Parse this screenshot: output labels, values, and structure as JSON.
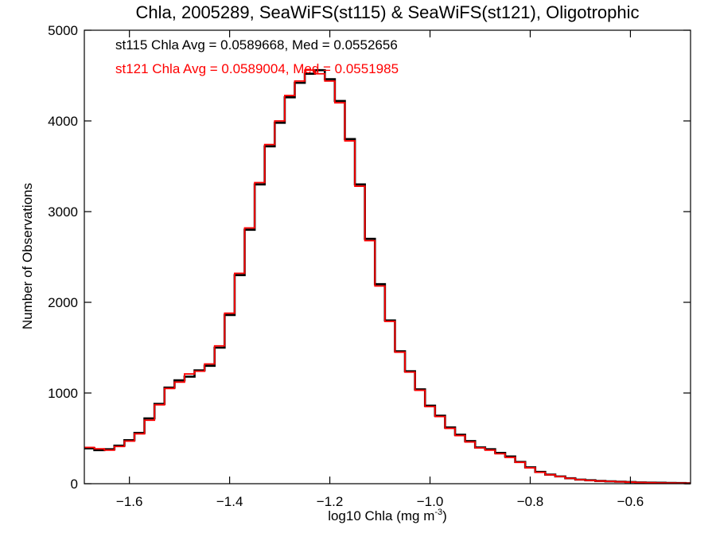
{
  "chart_data": {
    "type": "line",
    "title": "Chla, 2005289, SeaWiFS(st115) & SeaWiFS(st121), Oligotrophic",
    "xlabel": "log10 Chla (mg m",
    "xlabel_superscript": "-3",
    "xlabel_suffix": ")",
    "ylabel": "Number of Observations",
    "xlim": [
      -1.69,
      -0.48
    ],
    "ylim": [
      0,
      5000
    ],
    "x_ticks": [
      {
        "value": -1.6,
        "label": "−1.6"
      },
      {
        "value": -1.4,
        "label": "−1.4"
      },
      {
        "value": -1.2,
        "label": "−1.2"
      },
      {
        "value": -1.0,
        "label": "−1.0"
      },
      {
        "value": -0.8,
        "label": "−0.8"
      },
      {
        "value": -0.6,
        "label": "−0.6"
      }
    ],
    "y_ticks": [
      {
        "value": 0,
        "label": "0"
      },
      {
        "value": 1000,
        "label": "1000"
      },
      {
        "value": 2000,
        "label": "2000"
      },
      {
        "value": 3000,
        "label": "3000"
      },
      {
        "value": 4000,
        "label": "4000"
      },
      {
        "value": 5000,
        "label": "5000"
      }
    ],
    "grid": false,
    "annotations": [
      {
        "text": "st115 Chla Avg = 0.0589668, Med = 0.0552656",
        "color": "#000000"
      },
      {
        "text": "st121 Chla Avg = 0.0589004, Med = 0.0551985",
        "color": "#ff0000"
      }
    ],
    "x": [
      -1.69,
      -1.67,
      -1.65,
      -1.63,
      -1.61,
      -1.59,
      -1.57,
      -1.55,
      -1.53,
      -1.51,
      -1.49,
      -1.47,
      -1.45,
      -1.43,
      -1.41,
      -1.39,
      -1.37,
      -1.35,
      -1.33,
      -1.31,
      -1.29,
      -1.27,
      -1.25,
      -1.23,
      -1.21,
      -1.19,
      -1.17,
      -1.15,
      -1.13,
      -1.11,
      -1.09,
      -1.07,
      -1.05,
      -1.03,
      -1.01,
      -0.99,
      -0.97,
      -0.95,
      -0.93,
      -0.91,
      -0.89,
      -0.87,
      -0.85,
      -0.83,
      -0.81,
      -0.79,
      -0.77,
      -0.75,
      -0.73,
      -0.71,
      -0.69,
      -0.67,
      -0.65,
      -0.63,
      -0.61,
      -0.59,
      -0.57,
      -0.55,
      -0.53,
      -0.51,
      -0.49
    ],
    "series": [
      {
        "color": "#000000",
        "values": [
          390,
          370,
          380,
          420,
          480,
          560,
          720,
          880,
          1060,
          1140,
          1180,
          1250,
          1300,
          1500,
          1860,
          2300,
          2800,
          3300,
          3720,
          3980,
          4260,
          4420,
          4520,
          4560,
          4460,
          4220,
          3800,
          3300,
          2700,
          2200,
          1800,
          1460,
          1240,
          1040,
          860,
          750,
          620,
          540,
          470,
          400,
          380,
          340,
          300,
          240,
          180,
          130,
          100,
          80,
          60,
          45,
          38,
          30,
          26,
          22,
          18,
          14,
          12,
          10,
          8,
          7,
          5
        ]
      },
      {
        "color": "#ff0000",
        "values": [
          400,
          385,
          370,
          410,
          470,
          550,
          700,
          870,
          1050,
          1120,
          1210,
          1240,
          1320,
          1520,
          1880,
          2320,
          2820,
          3320,
          3740,
          4000,
          4280,
          4440,
          4560,
          4520,
          4440,
          4200,
          3780,
          3280,
          2680,
          2180,
          1790,
          1450,
          1230,
          1030,
          850,
          740,
          610,
          530,
          460,
          395,
          370,
          330,
          290,
          235,
          175,
          125,
          98,
          78,
          58,
          44,
          36,
          29,
          25,
          21,
          17,
          13,
          11,
          9,
          8,
          6,
          5
        ]
      }
    ]
  }
}
